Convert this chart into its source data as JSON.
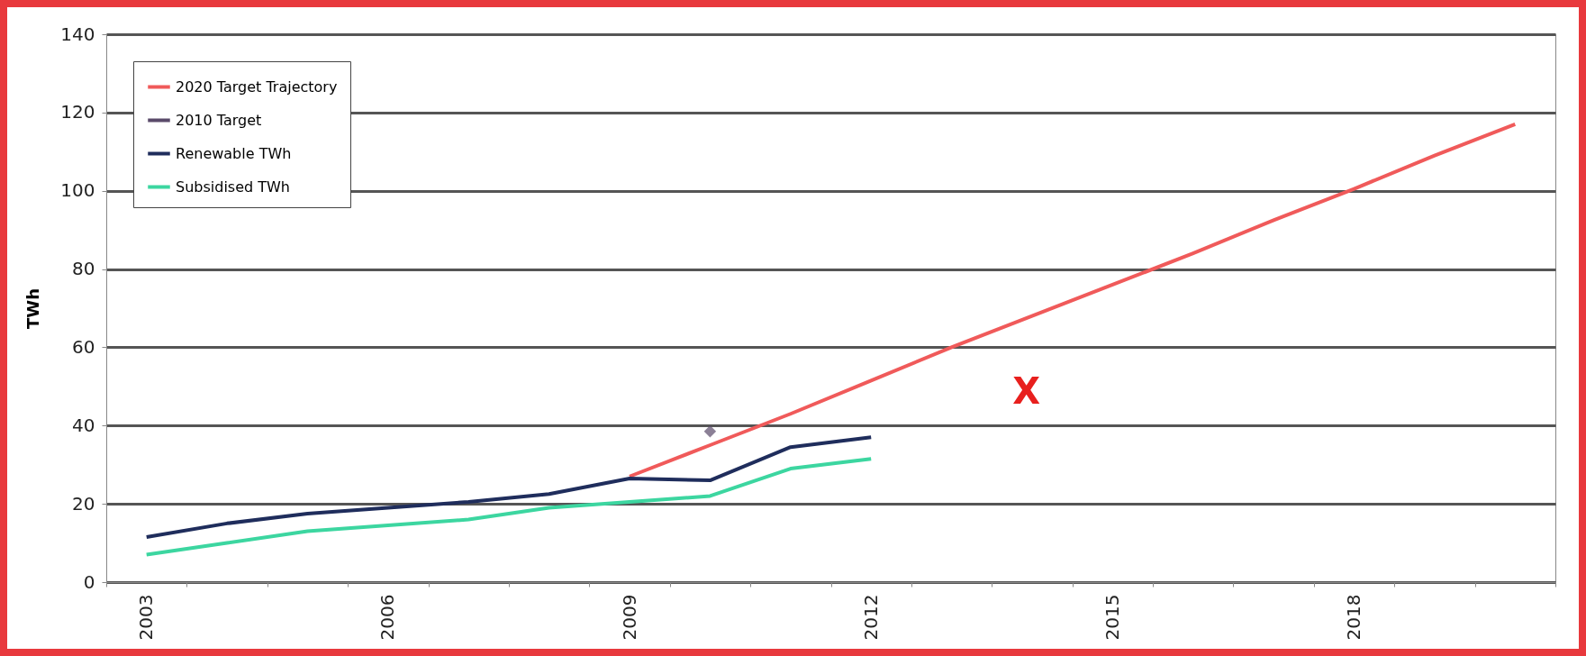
{
  "chart_data": {
    "type": "line",
    "ylabel": "TWh",
    "categories": [
      "2003",
      null,
      null,
      "2006",
      null,
      null,
      "2009",
      null,
      null,
      "2012",
      null,
      null,
      "2015",
      null,
      null,
      "2018",
      null,
      null
    ],
    "series": [
      {
        "name": "2020 Target Trajectory",
        "color": "#f05a5a",
        "values": [
          null,
          null,
          null,
          null,
          null,
          null,
          27,
          35,
          43,
          51.5,
          60,
          68,
          76,
          84,
          92.5,
          100.5,
          109,
          117
        ]
      },
      {
        "name": "2010 Target",
        "color": "#5a4a6a",
        "marker": "diamond",
        "values": [
          null,
          null,
          null,
          null,
          null,
          null,
          null,
          38.5,
          null,
          null,
          null,
          null,
          null,
          null,
          null,
          null,
          null,
          null
        ]
      },
      {
        "name": "Renewable TWh",
        "color": "#1f2d5c",
        "values": [
          11.5,
          15,
          17.5,
          19,
          20.5,
          22.5,
          26.5,
          26,
          34.5,
          37,
          null,
          null,
          null,
          null,
          null,
          null,
          null,
          null
        ]
      },
      {
        "name": "Subsidised TWh",
        "color": "#3cd6a0",
        "values": [
          7,
          10,
          13,
          14.5,
          16,
          19,
          20.5,
          22,
          29,
          31.5,
          null,
          null,
          null,
          null,
          null,
          null,
          null,
          null
        ]
      }
    ],
    "ylim": [
      0,
      140
    ],
    "yticks": [
      0,
      20,
      40,
      60,
      80,
      100,
      120,
      140
    ],
    "grid": "y",
    "legend": "top left",
    "annotations": [
      "X"
    ]
  }
}
